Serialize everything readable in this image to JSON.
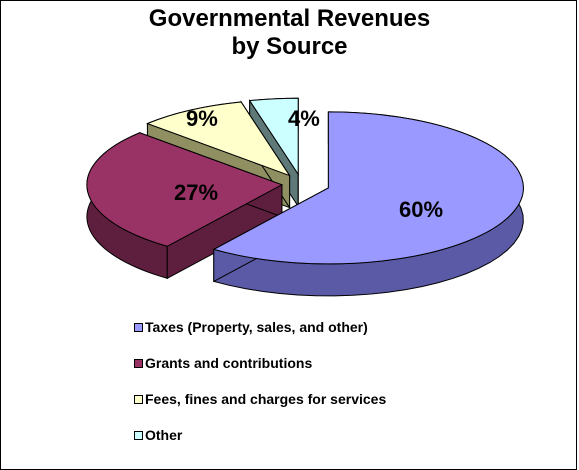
{
  "chart_data": {
    "type": "pie",
    "title_lines": [
      "Governmental Revenues",
      "by Source"
    ],
    "slices": [
      {
        "label": "Taxes (Property, sales, and other)",
        "value": 60,
        "value_label": "60%",
        "color": "#9999ff",
        "side": "#5a5aa6"
      },
      {
        "label": "Grants and contributions",
        "value": 27,
        "value_label": "27%",
        "color": "#993366",
        "side": "#5e1f3f"
      },
      {
        "label": "Fees, fines and charges for services",
        "value": 9,
        "value_label": "9%",
        "color": "#ffffcc",
        "side": "#8f8f62"
      },
      {
        "label": "Other",
        "value": 4,
        "value_label": "4%",
        "color": "#ccffff",
        "side": "#5f7878"
      }
    ],
    "legend_position": "bottom",
    "style": "3d-exploded"
  }
}
